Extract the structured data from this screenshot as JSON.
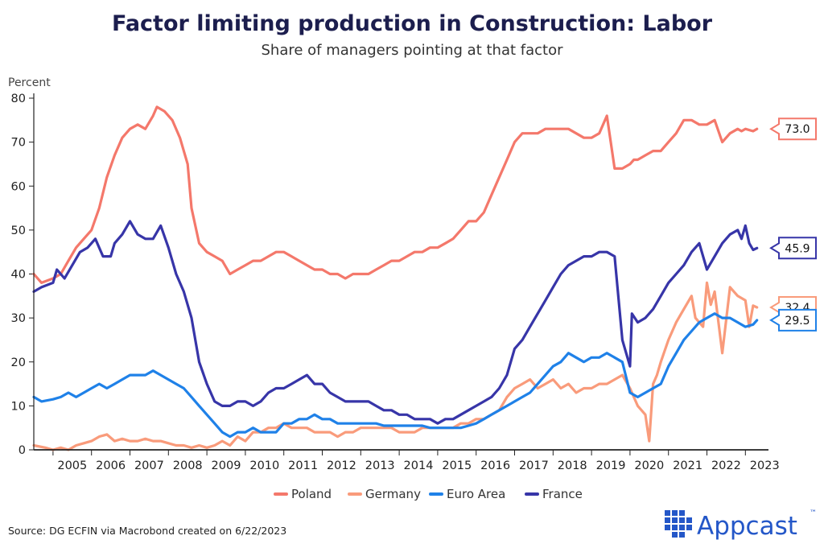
{
  "chart_data": {
    "type": "line",
    "title": "Factor limiting production in Construction: Labor",
    "subtitle": "Share of managers pointing at that factor",
    "ylabel": "Percent",
    "xlabel": "",
    "ylim": [
      0,
      80
    ],
    "yticks": [
      0,
      10,
      20,
      30,
      40,
      50,
      60,
      70,
      80
    ],
    "xlim": [
      2004.5,
      2023.6
    ],
    "xtick_labels": [
      "2005",
      "2006",
      "2007",
      "2008",
      "2009",
      "2010",
      "2011",
      "2012",
      "2013",
      "2014",
      "2015",
      "2016",
      "2017",
      "2018",
      "2019",
      "2020",
      "2021",
      "2022",
      "2023"
    ],
    "legend_position": "bottom-center",
    "source": "Source: DG ECFIN via Macrobond created on 6/22/2023",
    "series": [
      {
        "name": "Poland",
        "color": "#f4786b",
        "last_label": "73.0",
        "x": [
          2004.5,
          2004.7,
          2005.0,
          2005.2,
          2005.4,
          2005.6,
          2005.8,
          2006.0,
          2006.2,
          2006.4,
          2006.6,
          2006.8,
          2007.0,
          2007.2,
          2007.4,
          2007.6,
          2007.7,
          2007.9,
          2008.1,
          2008.3,
          2008.5,
          2008.6,
          2008.8,
          2009.0,
          2009.2,
          2009.4,
          2009.6,
          2009.8,
          2010.0,
          2010.2,
          2010.4,
          2010.6,
          2010.8,
          2011.0,
          2011.2,
          2011.4,
          2011.6,
          2011.8,
          2012.0,
          2012.2,
          2012.4,
          2012.6,
          2012.8,
          2013.0,
          2013.2,
          2013.4,
          2013.6,
          2013.8,
          2014.0,
          2014.2,
          2014.4,
          2014.6,
          2014.8,
          2015.0,
          2015.2,
          2015.4,
          2015.6,
          2015.8,
          2016.0,
          2016.2,
          2016.4,
          2016.6,
          2016.8,
          2017.0,
          2017.2,
          2017.4,
          2017.6,
          2017.8,
          2018.0,
          2018.2,
          2018.4,
          2018.6,
          2018.8,
          2019.0,
          2019.2,
          2019.4,
          2019.6,
          2019.8,
          2020.0,
          2020.1,
          2020.2,
          2020.4,
          2020.6,
          2020.8,
          2021.0,
          2021.2,
          2021.4,
          2021.6,
          2021.8,
          2022.0,
          2022.2,
          2022.4,
          2022.6,
          2022.8,
          2022.9,
          2023.0,
          2023.2,
          2023.3
        ],
        "y": [
          40,
          38,
          39,
          40,
          43,
          46,
          48,
          50,
          55,
          62,
          67,
          71,
          73,
          74,
          73,
          76,
          78,
          77,
          75,
          71,
          65,
          55,
          47,
          45,
          44,
          43,
          40,
          41,
          42,
          43,
          43,
          44,
          45,
          45,
          44,
          43,
          42,
          41,
          41,
          40,
          40,
          39,
          40,
          40,
          40,
          41,
          42,
          43,
          43,
          44,
          45,
          45,
          46,
          46,
          47,
          48,
          50,
          52,
          52,
          54,
          58,
          62,
          66,
          70,
          72,
          72,
          72,
          73,
          73,
          73,
          73,
          72,
          71,
          71,
          72,
          76,
          64,
          64,
          65,
          66,
          66,
          67,
          68,
          68,
          70,
          72,
          75,
          75,
          74,
          74,
          75,
          70,
          72,
          73,
          72.5,
          73,
          72.5,
          73.0
        ]
      },
      {
        "name": "Germany",
        "color": "#f99b7b",
        "last_label": "32.4",
        "x": [
          2004.5,
          2004.8,
          2005.0,
          2005.2,
          2005.4,
          2005.6,
          2005.8,
          2006.0,
          2006.2,
          2006.4,
          2006.6,
          2006.8,
          2007.0,
          2007.2,
          2007.4,
          2007.6,
          2007.8,
          2008.0,
          2008.2,
          2008.4,
          2008.6,
          2008.8,
          2009.0,
          2009.2,
          2009.4,
          2009.6,
          2009.8,
          2010.0,
          2010.2,
          2010.4,
          2010.6,
          2010.8,
          2011.0,
          2011.2,
          2011.4,
          2011.6,
          2011.8,
          2012.0,
          2012.2,
          2012.4,
          2012.6,
          2012.8,
          2013.0,
          2013.2,
          2013.4,
          2013.6,
          2013.8,
          2014.0,
          2014.2,
          2014.4,
          2014.6,
          2014.8,
          2015.0,
          2015.2,
          2015.4,
          2015.6,
          2015.8,
          2016.0,
          2016.2,
          2016.4,
          2016.6,
          2016.8,
          2017.0,
          2017.2,
          2017.4,
          2017.6,
          2017.8,
          2018.0,
          2018.2,
          2018.4,
          2018.6,
          2018.8,
          2019.0,
          2019.2,
          2019.4,
          2019.6,
          2019.8,
          2020.0,
          2020.2,
          2020.4,
          2020.5,
          2020.6,
          2020.7,
          2020.8,
          2021.0,
          2021.2,
          2021.4,
          2021.6,
          2021.7,
          2021.9,
          2022.0,
          2022.1,
          2022.2,
          2022.4,
          2022.6,
          2022.8,
          2023.0,
          2023.1,
          2023.2,
          2023.3
        ],
        "y": [
          1,
          0.5,
          0,
          0.5,
          0,
          1,
          1.5,
          2,
          3,
          3.5,
          2,
          2.5,
          2,
          2,
          2.5,
          2,
          2,
          1.5,
          1,
          1,
          0.5,
          1,
          0.5,
          1,
          2,
          1,
          3,
          2,
          4,
          4,
          5,
          5,
          6,
          5,
          5,
          5,
          4,
          4,
          4,
          3,
          4,
          4,
          5,
          5,
          5,
          5,
          5,
          4,
          4,
          4,
          5,
          5,
          5,
          5,
          5,
          6,
          6,
          7,
          7,
          8,
          9,
          12,
          14,
          15,
          16,
          14,
          15,
          16,
          14,
          15,
          13,
          14,
          14,
          15,
          15,
          16,
          17,
          14,
          10,
          8,
          2,
          15,
          17,
          20,
          25,
          29,
          32,
          35,
          30,
          28,
          38,
          33,
          36,
          22,
          37,
          35,
          34,
          28,
          32.8,
          32.4
        ]
      },
      {
        "name": "Euro Area",
        "color": "#1f81e8",
        "last_label": "29.5",
        "x": [
          2004.5,
          2004.7,
          2005.0,
          2005.2,
          2005.4,
          2005.6,
          2005.8,
          2006.0,
          2006.2,
          2006.4,
          2006.6,
          2006.8,
          2007.0,
          2007.2,
          2007.4,
          2007.6,
          2007.8,
          2008.0,
          2008.2,
          2008.4,
          2008.6,
          2008.8,
          2009.0,
          2009.2,
          2009.4,
          2009.6,
          2009.8,
          2010.0,
          2010.2,
          2010.4,
          2010.6,
          2010.8,
          2011.0,
          2011.2,
          2011.4,
          2011.6,
          2011.8,
          2012.0,
          2012.2,
          2012.4,
          2012.6,
          2012.8,
          2013.0,
          2013.2,
          2013.4,
          2013.6,
          2013.8,
          2014.0,
          2014.2,
          2014.4,
          2014.6,
          2014.8,
          2015.0,
          2015.2,
          2015.4,
          2015.6,
          2015.8,
          2016.0,
          2016.2,
          2016.4,
          2016.6,
          2016.8,
          2017.0,
          2017.2,
          2017.4,
          2017.6,
          2017.8,
          2018.0,
          2018.2,
          2018.4,
          2018.6,
          2018.8,
          2019.0,
          2019.2,
          2019.4,
          2019.6,
          2019.8,
          2020.0,
          2020.2,
          2020.4,
          2020.6,
          2020.8,
          2021.0,
          2021.2,
          2021.4,
          2021.6,
          2021.8,
          2022.0,
          2022.2,
          2022.4,
          2022.6,
          2022.8,
          2023.0,
          2023.2,
          2023.3
        ],
        "y": [
          12,
          11,
          11.5,
          12,
          13,
          12,
          13,
          14,
          15,
          14,
          15,
          16,
          17,
          17,
          17,
          18,
          17,
          16,
          15,
          14,
          12,
          10,
          8,
          6,
          4,
          3,
          4,
          4,
          5,
          4,
          4,
          4,
          6,
          6,
          7,
          7,
          8,
          7,
          7,
          6,
          6,
          6,
          6,
          6,
          6,
          5.5,
          5.5,
          5.5,
          5.5,
          5.5,
          5.5,
          5,
          5,
          5,
          5,
          5,
          5.5,
          6,
          7,
          8,
          9,
          10,
          11,
          12,
          13,
          15,
          17,
          19,
          20,
          22,
          21,
          20,
          21,
          21,
          22,
          21,
          20,
          13,
          12,
          13,
          14,
          15,
          19,
          22,
          25,
          27,
          29,
          30,
          31,
          30,
          30,
          29,
          28,
          28.5,
          29.5
        ]
      },
      {
        "name": "France",
        "color": "#3735a8",
        "last_label": "45.9",
        "x": [
          2004.5,
          2004.7,
          2005.0,
          2005.1,
          2005.3,
          2005.5,
          2005.7,
          2005.9,
          2006.1,
          2006.3,
          2006.5,
          2006.6,
          2006.8,
          2007.0,
          2007.2,
          2007.4,
          2007.6,
          2007.8,
          2008.0,
          2008.2,
          2008.4,
          2008.6,
          2008.8,
          2009.0,
          2009.2,
          2009.4,
          2009.6,
          2009.8,
          2010.0,
          2010.2,
          2010.4,
          2010.6,
          2010.8,
          2011.0,
          2011.2,
          2011.4,
          2011.6,
          2011.8,
          2012.0,
          2012.2,
          2012.4,
          2012.6,
          2012.8,
          2013.0,
          2013.2,
          2013.4,
          2013.6,
          2013.8,
          2014.0,
          2014.2,
          2014.4,
          2014.6,
          2014.8,
          2015.0,
          2015.2,
          2015.4,
          2015.6,
          2015.8,
          2016.0,
          2016.2,
          2016.4,
          2016.6,
          2016.8,
          2017.0,
          2017.2,
          2017.4,
          2017.6,
          2017.8,
          2018.0,
          2018.2,
          2018.4,
          2018.6,
          2018.8,
          2019.0,
          2019.2,
          2019.4,
          2019.6,
          2019.8,
          2020.0,
          2020.05,
          2020.2,
          2020.4,
          2020.6,
          2020.8,
          2021.0,
          2021.2,
          2021.4,
          2021.6,
          2021.8,
          2022.0,
          2022.2,
          2022.4,
          2022.6,
          2022.8,
          2022.9,
          2023.0,
          2023.1,
          2023.2,
          2023.3
        ],
        "y": [
          36,
          37,
          38,
          41,
          39,
          42,
          45,
          46,
          48,
          44,
          44,
          47,
          49,
          52,
          49,
          48,
          48,
          51,
          46,
          40,
          36,
          30,
          20,
          15,
          11,
          10,
          10,
          11,
          11,
          10,
          11,
          13,
          14,
          14,
          15,
          16,
          17,
          15,
          15,
          13,
          12,
          11,
          11,
          11,
          11,
          10,
          9,
          9,
          8,
          8,
          7,
          7,
          7,
          6,
          7,
          7,
          8,
          9,
          10,
          11,
          12,
          14,
          17,
          23,
          25,
          28,
          31,
          34,
          37,
          40,
          42,
          43,
          44,
          44,
          45,
          45,
          44,
          25,
          19,
          31,
          29,
          30,
          32,
          35,
          38,
          40,
          42,
          45,
          47,
          41,
          44,
          47,
          49,
          50,
          48,
          51,
          47,
          45.5,
          45.9
        ]
      }
    ]
  },
  "brand": {
    "name": "Appcast",
    "mark": "™"
  }
}
